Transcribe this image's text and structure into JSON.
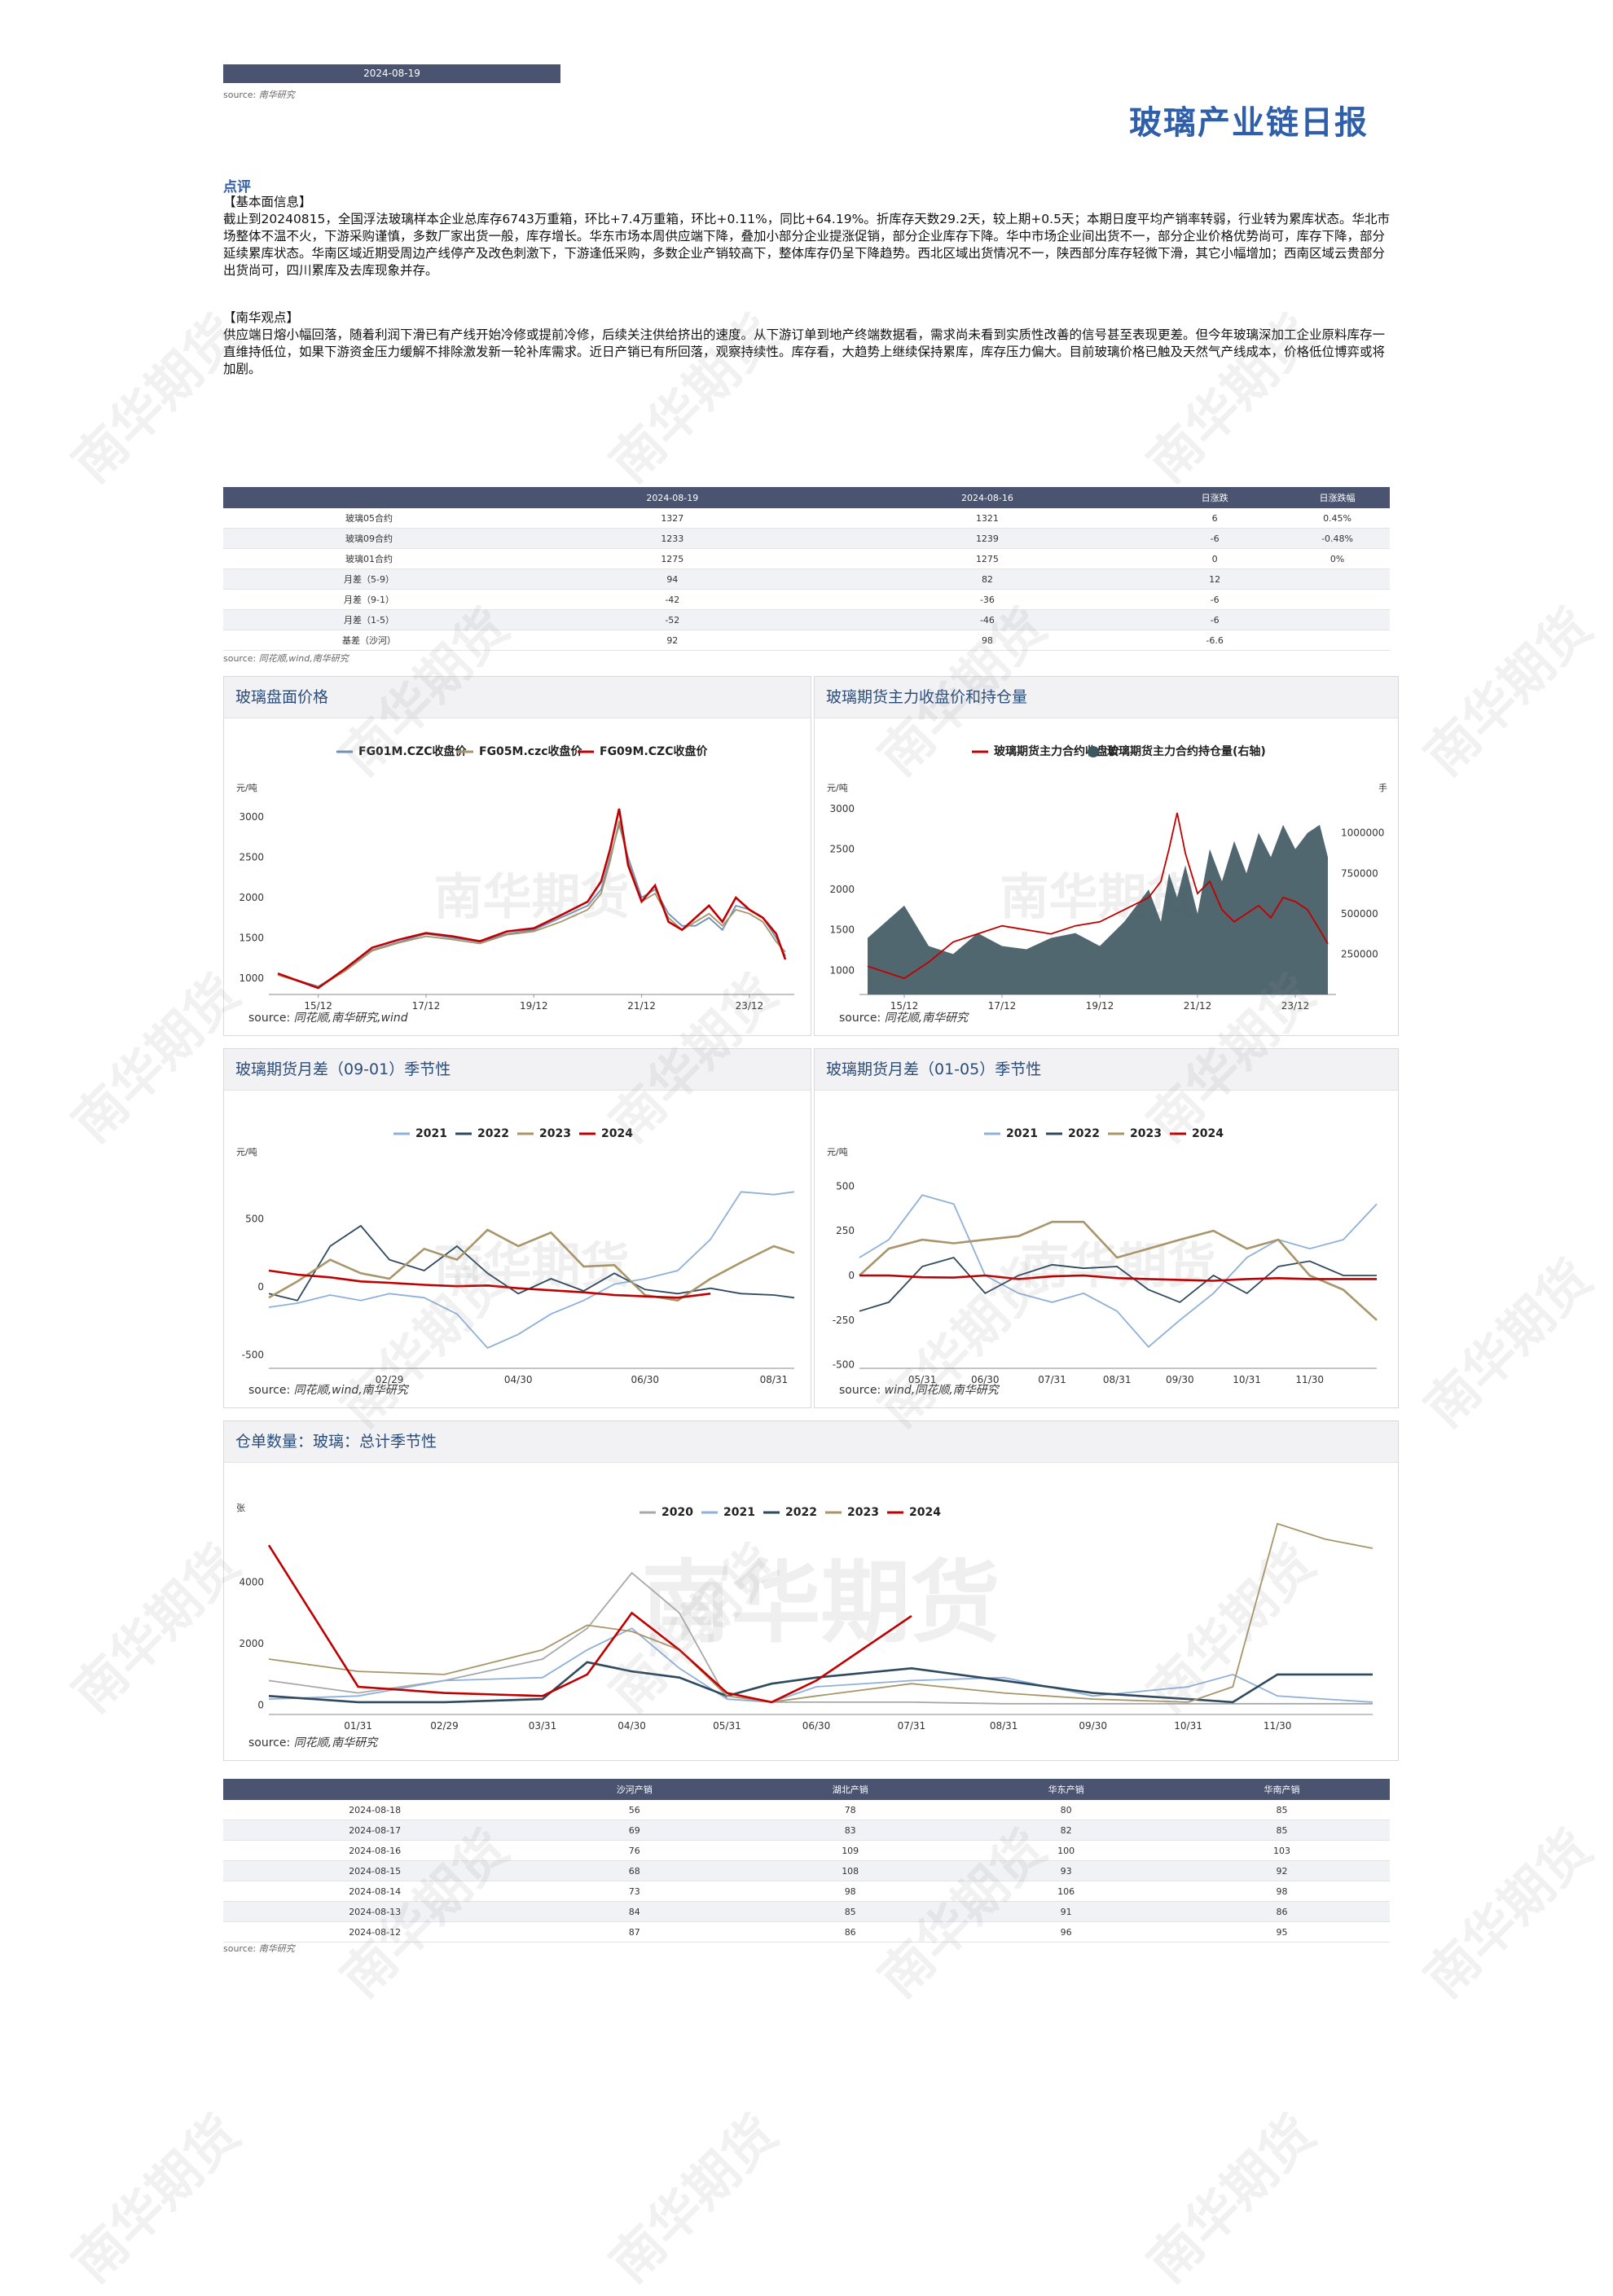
{
  "header": {
    "date": "2024-08-19",
    "source_label": "source:",
    "source_name": "南华研究",
    "title": "玻璃产业链日报"
  },
  "commentary": {
    "heading": "点评",
    "fundamentals_tag": "【基本面信息】",
    "fundamentals_text": "截止到20240815，全国浮法玻璃样本企业总库存6743万重箱，环比+7.4万重箱，环比+0.11%，同比+64.19%。折库存天数29.2天，较上期+0.5天；本期日度平均产销率转弱，行业转为累库状态。华北市场整体不温不火，下游采购谨慎，多数厂家出货一般，库存增长。华东市场本周供应端下降，叠加小部分企业提涨促销，部分企业库存下降。华中市场企业间出货不一，部分企业价格优势尚可，库存下降，部分延续累库状态。华南区域近期受周边产线停产及改色刺激下，下游逢低采购，多数企业产销较高下，整体库存仍呈下降趋势。西北区域出货情况不一，陕西部分库存轻微下滑，其它小幅增加；西南区域云贵部分出货尚可，四川累库及去库现象并存。",
    "view_tag": "【南华观点】",
    "view_text": "供应端日熔小幅回落，随着利润下滑已有产线开始冷修或提前冷修，后续关注供给挤出的速度。从下游订单到地产终端数据看，需求尚未看到实质性改善的信号甚至表现更差。但今年玻璃深加工企业原料库存一直维持低位，如果下游资金压力缓解不排除激发新一轮补库需求。近日产销已有所回落，观察持续性。库存看，大趋势上继续保持累库，库存压力偏大。目前玻璃价格已触及天然气产线成本，价格低位博弈或将加剧。"
  },
  "price_table": {
    "headers": [
      "",
      "2024-08-19",
      "2024-08-16",
      "日涨跌",
      "日涨跌幅"
    ],
    "rows": [
      [
        "玻璃05合约",
        "1327",
        "1321",
        "6",
        "0.45%"
      ],
      [
        "玻璃09合约",
        "1233",
        "1239",
        "-6",
        "-0.48%"
      ],
      [
        "玻璃01合约",
        "1275",
        "1275",
        "0",
        "0%"
      ],
      [
        "月差（5-9）",
        "94",
        "82",
        "12",
        ""
      ],
      [
        "月差（9-1）",
        "-42",
        "-36",
        "-6",
        ""
      ],
      [
        "月差（1-5）",
        "-52",
        "-46",
        "-6",
        ""
      ],
      [
        "基差（沙河）",
        "92",
        "98",
        "-6.6",
        ""
      ]
    ],
    "source": "同花顺,wind,南华研究"
  },
  "sales_table": {
    "headers": [
      "",
      "沙河产销",
      "湖北产销",
      "华东产销",
      "华南产销"
    ],
    "rows": [
      [
        "2024-08-18",
        "56",
        "78",
        "80",
        "85"
      ],
      [
        "2024-08-17",
        "69",
        "83",
        "82",
        "85"
      ],
      [
        "2024-08-16",
        "76",
        "109",
        "100",
        "103"
      ],
      [
        "2024-08-15",
        "68",
        "108",
        "93",
        "92"
      ],
      [
        "2024-08-14",
        "73",
        "98",
        "106",
        "98"
      ],
      [
        "2024-08-13",
        "84",
        "85",
        "91",
        "86"
      ],
      [
        "2024-08-12",
        "87",
        "86",
        "96",
        "95"
      ]
    ],
    "source": "南华研究"
  },
  "colors": {
    "c2020": "#a8a8a8",
    "c2021": "#8fb0d8",
    "c2022": "#2f4a5e",
    "c2023": "#a8956a",
    "c2024": "#c00000",
    "fg01": "#6f8fb8",
    "fg05": "#a8956a",
    "fg09": "#c00000",
    "oi_fill": "#3e5661"
  },
  "watermark": {
    "text": "南华期货"
  },
  "chart_data": [
    {
      "type": "line",
      "title": "玻璃盘面价格",
      "ylabel": "元/吨",
      "ylim": [
        800,
        3200
      ],
      "yticks": [
        1000,
        1500,
        2000,
        2500,
        3000
      ],
      "xticks": [
        "15/12",
        "17/12",
        "19/12",
        "21/12",
        "23/12"
      ],
      "series": [
        {
          "name": "FG01M.CZC收盘价",
          "x": [
            "2015-03",
            "2015-12",
            "2016-06",
            "2016-12",
            "2017-06",
            "2017-12",
            "2018-06",
            "2018-12",
            "2019-06",
            "2019-12",
            "2020-06",
            "2020-12",
            "2021-03",
            "2021-05",
            "2021-07",
            "2021-09",
            "2021-12",
            "2022-03",
            "2022-06",
            "2022-09",
            "2022-12",
            "2023-03",
            "2023-06",
            "2023-09",
            "2023-12",
            "2024-03",
            "2024-06",
            "2024-08"
          ],
          "values": [
            1050,
            900,
            1100,
            1350,
            1450,
            1550,
            1500,
            1450,
            1550,
            1600,
            1750,
            1900,
            2100,
            2500,
            2900,
            2500,
            2000,
            2100,
            1800,
            1650,
            1650,
            1750,
            1600,
            1900,
            1850,
            1750,
            1500,
            1275
          ]
        },
        {
          "name": "FG05M.czc收盘价",
          "x": [
            "2015-03",
            "2015-12",
            "2016-06",
            "2016-12",
            "2017-06",
            "2017-12",
            "2018-06",
            "2018-12",
            "2019-06",
            "2019-12",
            "2020-06",
            "2020-12",
            "2021-03",
            "2021-05",
            "2021-07",
            "2021-09",
            "2021-12",
            "2022-03",
            "2022-06",
            "2022-09",
            "2022-12",
            "2023-03",
            "2023-06",
            "2023-09",
            "2023-12",
            "2024-03",
            "2024-06",
            "2024-08"
          ],
          "values": [
            1040,
            890,
            1090,
            1340,
            1440,
            1520,
            1480,
            1430,
            1540,
            1580,
            1700,
            1850,
            2050,
            2450,
            2950,
            2450,
            1950,
            2050,
            1750,
            1600,
            1700,
            1800,
            1650,
            1850,
            1800,
            1700,
            1450,
            1327
          ]
        },
        {
          "name": "FG09M.CZC收盘价",
          "x": [
            "2015-03",
            "2015-12",
            "2016-06",
            "2016-12",
            "2017-06",
            "2017-12",
            "2018-06",
            "2018-12",
            "2019-06",
            "2019-12",
            "2020-06",
            "2020-12",
            "2021-03",
            "2021-05",
            "2021-07",
            "2021-09",
            "2021-12",
            "2022-03",
            "2022-06",
            "2022-09",
            "2022-12",
            "2023-03",
            "2023-06",
            "2023-09",
            "2023-12",
            "2024-03",
            "2024-06",
            "2024-08"
          ],
          "values": [
            1060,
            880,
            1120,
            1380,
            1480,
            1560,
            1520,
            1460,
            1580,
            1620,
            1780,
            1950,
            2200,
            2600,
            3100,
            2400,
            1950,
            2150,
            1700,
            1600,
            1750,
            1900,
            1700,
            2000,
            1850,
            1750,
            1550,
            1233
          ]
        }
      ],
      "source": "同花顺,南华研究,wind"
    },
    {
      "type": "line",
      "title": "玻璃期货主力收盘价和持仓量",
      "ylabel": "元/吨",
      "ylabel_right": "手",
      "ylim": [
        700,
        3100
      ],
      "yticks": [
        1000,
        1500,
        2000,
        2500,
        3000
      ],
      "ylim_right": [
        0,
        1200000
      ],
      "yticks_right": [
        250000,
        500000,
        750000,
        1000000
      ],
      "xticks": [
        "15/12",
        "17/12",
        "19/12",
        "21/12",
        "23/12"
      ],
      "series": [
        {
          "name": "玻璃期货主力合约收盘价",
          "x": [
            "2015-03",
            "2015-12",
            "2016-06",
            "2016-12",
            "2017-06",
            "2017-12",
            "2018-06",
            "2018-12",
            "2019-06",
            "2019-12",
            "2020-06",
            "2020-12",
            "2021-03",
            "2021-05",
            "2021-07",
            "2021-09",
            "2021-12",
            "2022-03",
            "2022-06",
            "2022-09",
            "2022-12",
            "2023-03",
            "2023-06",
            "2023-09",
            "2023-12",
            "2024-03",
            "2024-06",
            "2024-08"
          ],
          "values": [
            1050,
            900,
            1100,
            1350,
            1450,
            1550,
            1500,
            1450,
            1550,
            1600,
            1750,
            1900,
            2100,
            2500,
            2950,
            2450,
            1950,
            2100,
            1750,
            1600,
            1700,
            1800,
            1650,
            1900,
            1850,
            1750,
            1500,
            1327
          ]
        },
        {
          "name": "玻璃期货主力合约持仓量(右轴)",
          "type": "area",
          "x": [
            "2015-03",
            "2015-12",
            "2016-06",
            "2016-12",
            "2017-06",
            "2017-12",
            "2018-06",
            "2018-12",
            "2019-06",
            "2019-12",
            "2020-06",
            "2020-12",
            "2021-03",
            "2021-05",
            "2021-07",
            "2021-09",
            "2021-12",
            "2022-03",
            "2022-06",
            "2022-09",
            "2022-12",
            "2023-03",
            "2023-06",
            "2023-09",
            "2023-12",
            "2024-03",
            "2024-06",
            "2024-08"
          ],
          "values": [
            350000,
            550000,
            300000,
            250000,
            380000,
            300000,
            280000,
            350000,
            380000,
            300000,
            450000,
            650000,
            450000,
            750000,
            600000,
            800000,
            500000,
            900000,
            700000,
            950000,
            750000,
            1000000,
            850000,
            1050000,
            900000,
            1000000,
            1050000,
            850000
          ]
        }
      ],
      "source": "同花顺,南华研究"
    },
    {
      "type": "line",
      "title": "玻璃期货月差（09-01）季节性",
      "ylabel": "元/吨",
      "ylim": [
        -600,
        900
      ],
      "yticks": [
        -500,
        0,
        500
      ],
      "xticks": [
        "02/29",
        "04/30",
        "06/30",
        "08/31"
      ],
      "x": [
        "01/01",
        "01/15",
        "01/31",
        "02/15",
        "02/29",
        "03/15",
        "03/31",
        "04/15",
        "04/30",
        "05/15",
        "05/31",
        "06/15",
        "06/30",
        "07/15",
        "07/31",
        "08/15",
        "08/31",
        "09/10"
      ],
      "series": [
        {
          "name": "2021",
          "values": [
            -150,
            -120,
            -60,
            -100,
            -50,
            -80,
            -200,
            -450,
            -350,
            -200,
            -100,
            20,
            60,
            120,
            350,
            700,
            680,
            700
          ]
        },
        {
          "name": "2022",
          "values": [
            -50,
            -100,
            300,
            450,
            200,
            120,
            300,
            100,
            -50,
            60,
            -30,
            100,
            -20,
            -50,
            -10,
            -50,
            -60,
            -80
          ]
        },
        {
          "name": "2023",
          "values": [
            -80,
            40,
            200,
            100,
            60,
            280,
            200,
            420,
            300,
            400,
            150,
            160,
            -60,
            -100,
            60,
            180,
            300,
            250
          ]
        },
        {
          "name": "2024",
          "values": [
            120,
            90,
            70,
            40,
            30,
            15,
            5,
            10,
            -10,
            -25,
            -40,
            -60,
            -70,
            -80,
            -50,
            null,
            null,
            null
          ]
        }
      ],
      "source": "同花顺,wind,南华研究"
    },
    {
      "type": "line",
      "title": "玻璃期货月差（01-05）季节性",
      "ylabel": "元/吨",
      "ylim": [
        -520,
        620
      ],
      "yticks": [
        -500,
        -250,
        0,
        250,
        500
      ],
      "xticks": [
        "05/31",
        "06/30",
        "07/31",
        "08/31",
        "09/30",
        "10/31",
        "11/30"
      ],
      "x": [
        "05/01",
        "05/15",
        "05/31",
        "06/15",
        "06/30",
        "07/15",
        "07/31",
        "08/15",
        "08/31",
        "09/15",
        "09/30",
        "10/15",
        "10/31",
        "11/15",
        "11/30",
        "12/15",
        "12/31"
      ],
      "series": [
        {
          "name": "2021",
          "values": [
            100,
            200,
            450,
            400,
            0,
            -100,
            -150,
            -100,
            -200,
            -400,
            -250,
            -100,
            100,
            200,
            150,
            200,
            400
          ]
        },
        {
          "name": "2022",
          "values": [
            -200,
            -150,
            50,
            100,
            -100,
            0,
            60,
            40,
            50,
            -80,
            -150,
            0,
            -100,
            50,
            80,
            0,
            0
          ]
        },
        {
          "name": "2023",
          "values": [
            0,
            150,
            200,
            180,
            200,
            220,
            300,
            300,
            100,
            150,
            200,
            250,
            150,
            200,
            0,
            -80,
            -250
          ]
        },
        {
          "name": "2024",
          "values": [
            0,
            0,
            -10,
            -12,
            0,
            -20,
            -5,
            0,
            -15,
            -20,
            -25,
            -30,
            -20,
            -15,
            -20,
            -20,
            -20
          ]
        }
      ],
      "source": "wind,同花顺,南华研究"
    },
    {
      "type": "line",
      "title": "仓单数量：玻璃：总计季节性",
      "ylabel": "张",
      "ylim": [
        -300,
        6000
      ],
      "yticks": [
        0,
        2000,
        4000
      ],
      "xticks": [
        "01/31",
        "02/29",
        "03/31",
        "04/30",
        "05/31",
        "06/30",
        "07/31",
        "08/31",
        "09/30",
        "10/31",
        "11/30"
      ],
      "x": [
        "01/01",
        "01/31",
        "02/29",
        "03/31",
        "04/15",
        "04/30",
        "05/15",
        "05/31",
        "06/15",
        "06/30",
        "07/31",
        "08/31",
        "09/30",
        "10/31",
        "11/15",
        "11/30",
        "12/15",
        "12/31"
      ],
      "series": [
        {
          "name": "2020",
          "values": [
            800,
            400,
            800,
            1500,
            2500,
            4300,
            3000,
            200,
            100,
            100,
            100,
            50,
            50,
            50,
            50,
            50,
            50,
            50
          ]
        },
        {
          "name": "2021",
          "values": [
            200,
            300,
            800,
            900,
            1800,
            2500,
            1200,
            200,
            100,
            600,
            800,
            900,
            300,
            600,
            1000,
            300,
            200,
            100
          ]
        },
        {
          "name": "2022",
          "values": [
            300,
            100,
            100,
            200,
            1400,
            1100,
            900,
            300,
            700,
            900,
            1200,
            800,
            400,
            200,
            100,
            1000,
            1000,
            1000
          ]
        },
        {
          "name": "2023",
          "values": [
            1500,
            1100,
            1000,
            1800,
            2600,
            2400,
            1800,
            300,
            100,
            300,
            700,
            400,
            200,
            100,
            600,
            5900,
            5400,
            5100
          ]
        },
        {
          "name": "2024",
          "values": [
            5200,
            600,
            400,
            300,
            1000,
            3000,
            1800,
            400,
            100,
            800,
            2900,
            null,
            null,
            null,
            null,
            null,
            null,
            null
          ]
        }
      ],
      "source": "同花顺,南华研究"
    }
  ]
}
